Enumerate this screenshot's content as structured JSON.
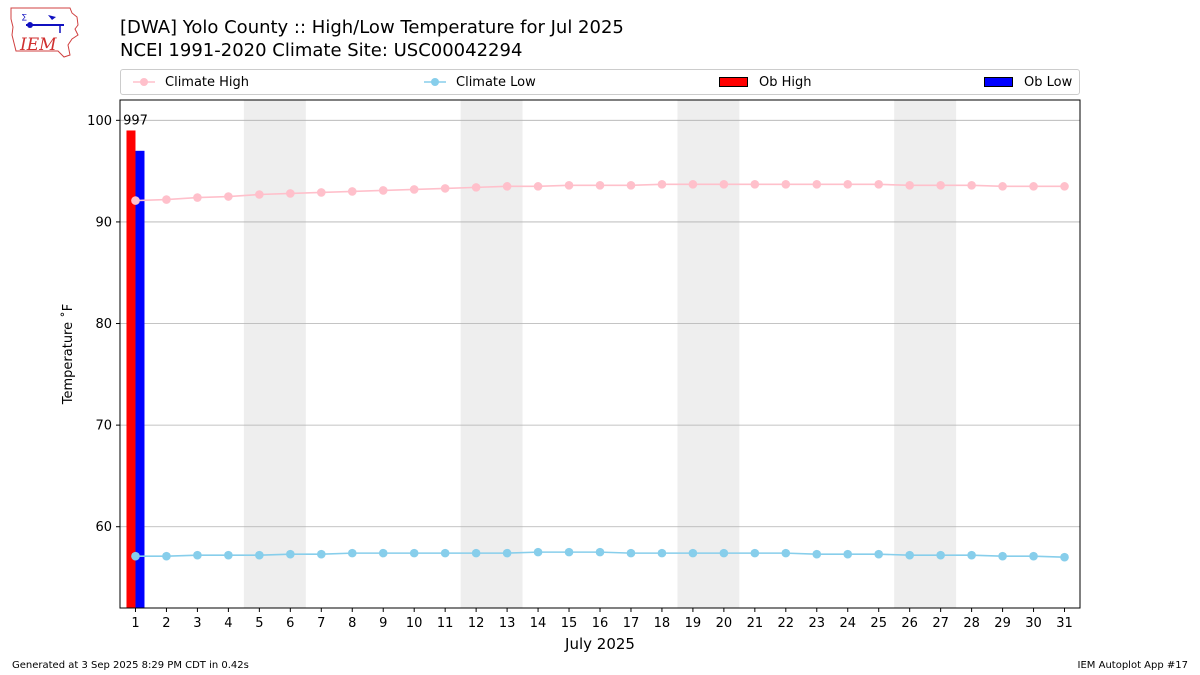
{
  "header": {
    "logo_text": "IEM",
    "title_line1": "[DWA] Yolo County :: High/Low Temperature for Jul 2025",
    "title_line2": "NCEI 1991-2020 Climate Site: USC00042294"
  },
  "legend": {
    "climate_high": "Climate High",
    "climate_low": "Climate Low",
    "ob_high": "Ob High",
    "ob_low": "Ob Low"
  },
  "colors": {
    "climate_high": "#ffc0cb",
    "climate_low": "#87ceeb",
    "ob_high": "#ff0000",
    "ob_low": "#0000ff",
    "weekend_band": "#eeeeee",
    "grid": "#b0b0b0"
  },
  "footer": {
    "left": "Generated at 3 Sep 2025 8:29 PM CDT in 0.42s",
    "right": "IEM Autoplot App #17"
  },
  "chart_data": {
    "type": "line",
    "xlabel": "July 2025",
    "ylabel": "Temperature ˚F",
    "xlim": [
      0.5,
      31.5
    ],
    "ylim": [
      52,
      102
    ],
    "yticks": [
      60,
      70,
      80,
      90,
      100
    ],
    "grid": "y",
    "legend_placement": "top",
    "weekend_bands": [
      [
        5,
        6
      ],
      [
        12,
        13
      ],
      [
        19,
        20
      ],
      [
        26,
        27
      ]
    ],
    "x": [
      1,
      2,
      3,
      4,
      5,
      6,
      7,
      8,
      9,
      10,
      11,
      12,
      13,
      14,
      15,
      16,
      17,
      18,
      19,
      20,
      21,
      22,
      23,
      24,
      25,
      26,
      27,
      28,
      29,
      30,
      31
    ],
    "series": [
      {
        "name": "Climate High",
        "kind": "line",
        "values": [
          92.1,
          92.2,
          92.4,
          92.5,
          92.7,
          92.8,
          92.9,
          93.0,
          93.1,
          93.2,
          93.3,
          93.4,
          93.5,
          93.5,
          93.6,
          93.6,
          93.6,
          93.7,
          93.7,
          93.7,
          93.7,
          93.7,
          93.7,
          93.7,
          93.7,
          93.6,
          93.6,
          93.6,
          93.5,
          93.5,
          93.5
        ]
      },
      {
        "name": "Climate Low",
        "kind": "line",
        "values": [
          57.1,
          57.1,
          57.2,
          57.2,
          57.2,
          57.3,
          57.3,
          57.4,
          57.4,
          57.4,
          57.4,
          57.4,
          57.4,
          57.5,
          57.5,
          57.5,
          57.4,
          57.4,
          57.4,
          57.4,
          57.4,
          57.4,
          57.3,
          57.3,
          57.3,
          57.2,
          57.2,
          57.2,
          57.1,
          57.1,
          57.0
        ]
      },
      {
        "name": "Ob High",
        "kind": "bar",
        "x": [
          1
        ],
        "values": [
          99
        ]
      },
      {
        "name": "Ob Low",
        "kind": "bar",
        "x": [
          1
        ],
        "values": [
          97
        ]
      }
    ],
    "bar_labels": [
      "997"
    ]
  }
}
